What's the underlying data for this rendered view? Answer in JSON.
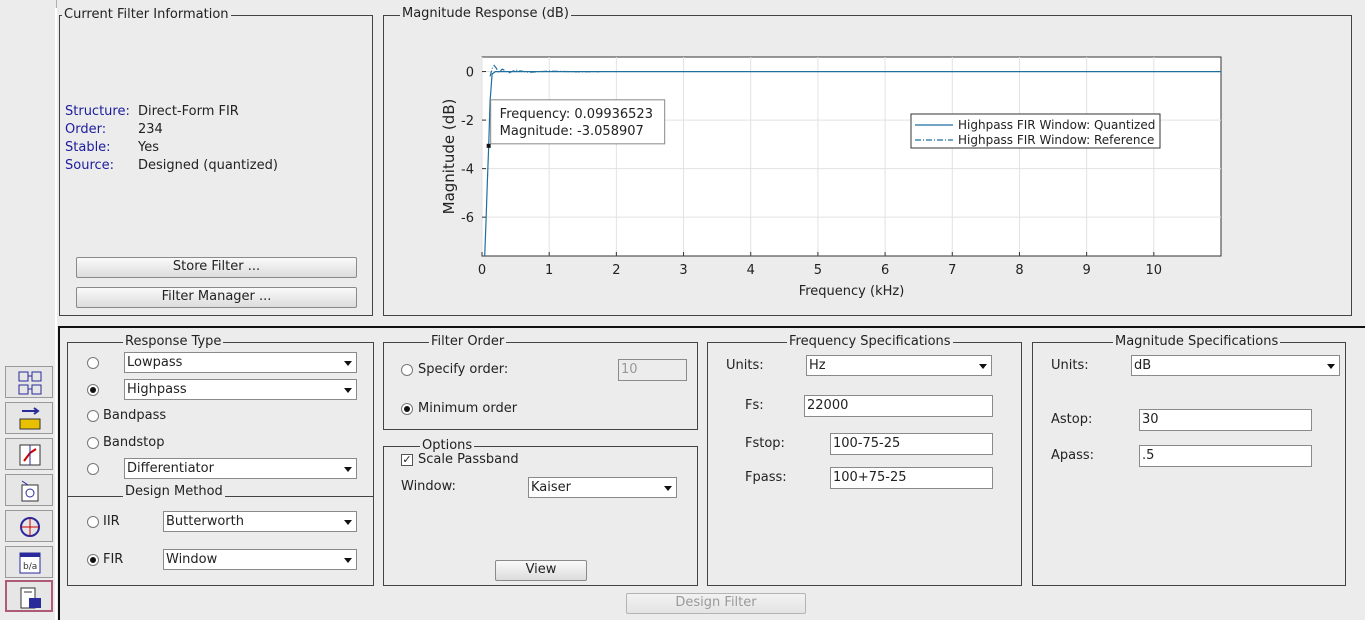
{
  "current_filter": {
    "title": "Current Filter Information",
    "rows": [
      {
        "key": "Structure:",
        "value": "Direct-Form FIR"
      },
      {
        "key": "Order:",
        "value": "234"
      },
      {
        "key": "Stable:",
        "value": "Yes"
      },
      {
        "key": "Source:",
        "value": "Designed (quantized)"
      }
    ],
    "store_button": "Store Filter ...",
    "manager_button": "Filter Manager ..."
  },
  "magnitude_panel": {
    "title": "Magnitude Response (dB)"
  },
  "chart_data": {
    "type": "line",
    "xlabel": "Frequency (kHz)",
    "ylabel": "Magnitude (dB)",
    "xlim": [
      0,
      11
    ],
    "ylim": [
      -7.6,
      0.6
    ],
    "xticks": [
      "0",
      "1",
      "2",
      "3",
      "4",
      "5",
      "6",
      "7",
      "8",
      "9",
      "10"
    ],
    "yticks": [
      "0",
      "-2",
      "-4",
      "-6"
    ],
    "grid": true,
    "legend_position": "center-right",
    "series": [
      {
        "name": "Highpass FIR Window: Quantized",
        "style": "solid",
        "x": [
          0.04,
          0.06,
          0.08,
          0.0994,
          0.12,
          0.15,
          0.2,
          11
        ],
        "y": [
          -7.6,
          -6.2,
          -4.5,
          -3.06,
          -1.2,
          -0.1,
          0.0,
          0.0
        ]
      },
      {
        "name": "Highpass FIR Window: Reference",
        "style": "dash-dot",
        "x": [
          0.12,
          0.15,
          0.18,
          0.21,
          0.25,
          0.3,
          0.4,
          0.5,
          0.7,
          1.0,
          1.4,
          1.75
        ],
        "y": [
          -0.2,
          0.12,
          0.25,
          0.15,
          -0.05,
          0.1,
          -0.05,
          0.06,
          -0.03,
          0.02,
          -0.01,
          0.0
        ]
      }
    ],
    "datatip": {
      "x": 0.0994,
      "y": -3.06,
      "line1": "Frequency: 0.09936523",
      "line2": "Magnitude: -3.058907"
    },
    "line_color": "#1f6f9f"
  },
  "response_type": {
    "title": "Response Type",
    "options": [
      {
        "label": "Lowpass",
        "selected": false
      },
      {
        "label": "Highpass",
        "selected": true
      },
      {
        "label": "Bandpass",
        "selected": false
      },
      {
        "label": "Bandstop",
        "selected": false
      },
      {
        "label": "Differentiator",
        "selected": false
      }
    ]
  },
  "design_method": {
    "title": "Design Method",
    "iir_label": "IIR",
    "iir_value": "Butterworth",
    "fir_label": "FIR",
    "fir_value": "Window"
  },
  "filter_order": {
    "title": "Filter Order",
    "specify_label": "Specify order:",
    "specify_value": "10",
    "minimum_label": "Minimum order"
  },
  "options": {
    "title": "Options",
    "scale_label": "Scale Passband",
    "window_label": "Window:",
    "window_value": "Kaiser",
    "view_button": "View"
  },
  "freq_spec": {
    "title": "Frequency Specifications",
    "units_label": "Units:",
    "units_value": "Hz",
    "fs_label": "Fs:",
    "fs_value": "22000",
    "fstop_label": "Fstop:",
    "fstop_value": "100-75-25",
    "fpass_label": "Fpass:",
    "fpass_value": "100+75-25"
  },
  "mag_spec": {
    "title": "Magnitude Specifications",
    "units_label": "Units:",
    "units_value": "dB",
    "astop_label": "Astop:",
    "astop_value": "30",
    "apass_label": "Apass:",
    "apass_value": ".5"
  },
  "design_button": "Design Filter",
  "sidebar_icons": [
    "transform-filter-icon",
    "import-filter-icon",
    "pole-zero-editor-icon",
    "multirate-design-icon",
    "quantize-icon",
    "realize-model-icon",
    "design-filter-icon"
  ]
}
